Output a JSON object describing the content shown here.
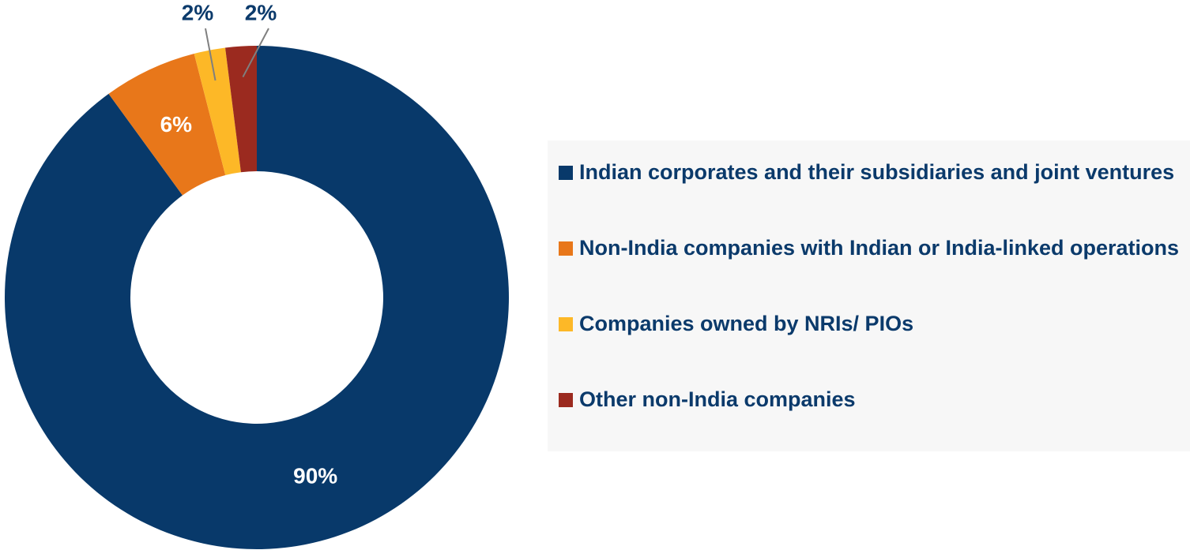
{
  "chart_data": {
    "type": "donut",
    "categories": [
      "Indian corporates and their subsidiaries and joint ventures",
      "Non-India companies with Indian or India-linked operations",
      "Companies owned by NRIs/ PIOs",
      "Other non-India companies"
    ],
    "values": [
      90,
      6,
      2,
      2
    ],
    "value_labels": [
      "90%",
      "6%",
      "2%",
      "2%"
    ],
    "colors": [
      "#08396a",
      "#e8771a",
      "#fdb827",
      "#9b2a1f"
    ]
  }
}
